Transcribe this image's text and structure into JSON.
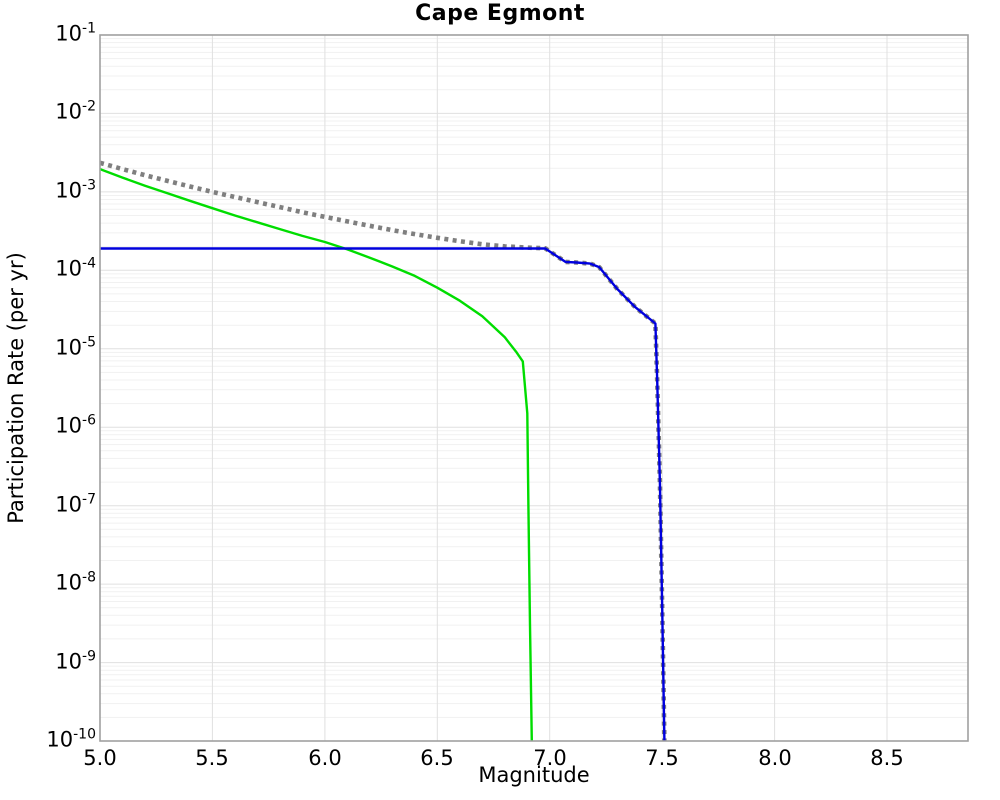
{
  "chart_data": {
    "type": "line",
    "title": "Cape Egmont",
    "xlabel": "Magnitude",
    "ylabel": "Participation Rate (per yr)",
    "x_range": [
      5.0,
      8.86
    ],
    "y_range": [
      1e-10,
      0.1
    ],
    "grid": true,
    "legend_position": "none",
    "x_ticks": [
      {
        "v": 5.0,
        "label": "5.0"
      },
      {
        "v": 5.5,
        "label": "5.5"
      },
      {
        "v": 6.0,
        "label": "6.0"
      },
      {
        "v": 6.5,
        "label": "6.5"
      },
      {
        "v": 7.0,
        "label": "7.0"
      },
      {
        "v": 7.5,
        "label": "7.5"
      },
      {
        "v": 8.0,
        "label": "8.0"
      },
      {
        "v": 8.5,
        "label": "8.5"
      }
    ],
    "y_ticks": [
      {
        "base": "10",
        "exp": "-1"
      },
      {
        "base": "10",
        "exp": "-2"
      },
      {
        "base": "10",
        "exp": "-3"
      },
      {
        "base": "10",
        "exp": "-4"
      },
      {
        "base": "10",
        "exp": "-5"
      },
      {
        "base": "10",
        "exp": "-6"
      },
      {
        "base": "10",
        "exp": "-7"
      },
      {
        "base": "10",
        "exp": "-8"
      },
      {
        "base": "10",
        "exp": "-9"
      },
      {
        "base": "10",
        "exp": "-10"
      }
    ],
    "colors": {
      "green_line": "#00dd00",
      "blue_line": "#0000dd",
      "gray_dotted": "#7f7f7f",
      "grid_major": "#e0e0e0",
      "grid_minor": "#f1f1f1",
      "axis_border": "#a0a0a0",
      "text": "#000000"
    },
    "series": [
      {
        "name": "green-solid-curve",
        "color": "#00dd00",
        "style": "solid",
        "width": 2.4,
        "points": [
          [
            5.0,
            0.00195
          ],
          [
            5.1,
            0.00152
          ],
          [
            5.2,
            0.0012
          ],
          [
            5.3,
            0.00096
          ],
          [
            5.4,
            0.00077
          ],
          [
            5.5,
            0.00062
          ],
          [
            5.6,
            0.0005
          ],
          [
            5.7,
            0.00041
          ],
          [
            5.8,
            0.000335
          ],
          [
            5.9,
            0.000275
          ],
          [
            6.0,
            0.00023
          ],
          [
            6.1,
            0.000185
          ],
          [
            6.2,
            0.000145
          ],
          [
            6.3,
            0.000112
          ],
          [
            6.4,
            8.5e-05
          ],
          [
            6.5,
            6e-05
          ],
          [
            6.6,
            4.1e-05
          ],
          [
            6.7,
            2.6e-05
          ],
          [
            6.8,
            1.4e-05
          ],
          [
            6.85,
            9.2e-06
          ],
          [
            6.88,
            6.9e-06
          ],
          [
            6.9,
            1.5e-06
          ],
          [
            6.905,
            1e-07
          ],
          [
            6.912,
            3e-09
          ],
          [
            6.92,
            1e-10
          ]
        ]
      },
      {
        "name": "gray-dotted-curve",
        "color": "#7f7f7f",
        "style": "dotted",
        "width": 4.6,
        "dash": "4 4.4",
        "points": [
          [
            5.0,
            0.00235
          ],
          [
            5.1,
            0.00195
          ],
          [
            5.2,
            0.00163
          ],
          [
            5.3,
            0.00138
          ],
          [
            5.4,
            0.00117
          ],
          [
            5.5,
            0.001
          ],
          [
            5.6,
            0.00086
          ],
          [
            5.7,
            0.00074
          ],
          [
            5.8,
            0.00064
          ],
          [
            5.9,
            0.00055
          ],
          [
            6.0,
            0.00048
          ],
          [
            6.1,
            0.00042
          ],
          [
            6.2,
            0.00037
          ],
          [
            6.3,
            0.000325
          ],
          [
            6.4,
            0.00029
          ],
          [
            6.5,
            0.00026
          ],
          [
            6.6,
            0.000235
          ],
          [
            6.7,
            0.000215
          ],
          [
            6.8,
            0.000202
          ],
          [
            6.9,
            0.000195
          ],
          [
            6.98,
            0.000191
          ],
          [
            7.07,
            0.000128
          ],
          [
            7.12,
            0.000126
          ],
          [
            7.18,
            0.000122
          ],
          [
            7.22,
            0.00011
          ],
          [
            7.3,
            5.8e-05
          ],
          [
            7.38,
            3.4e-05
          ],
          [
            7.47,
            2.1e-05
          ],
          [
            7.478,
            4e-06
          ],
          [
            7.49,
            2e-07
          ],
          [
            7.5,
            5e-09
          ],
          [
            7.51,
            1e-10
          ]
        ]
      },
      {
        "name": "blue-solid-curve",
        "color": "#0000dd",
        "style": "solid",
        "width": 2.4,
        "points": [
          [
            5.0,
            0.00019
          ],
          [
            5.5,
            0.00019
          ],
          [
            6.0,
            0.00019
          ],
          [
            6.5,
            0.00019
          ],
          [
            6.98,
            0.00019
          ],
          [
            7.07,
            0.000128
          ],
          [
            7.12,
            0.000126
          ],
          [
            7.18,
            0.000122
          ],
          [
            7.22,
            0.00011
          ],
          [
            7.3,
            5.8e-05
          ],
          [
            7.38,
            3.4e-05
          ],
          [
            7.47,
            2.1e-05
          ],
          [
            7.478,
            4e-06
          ],
          [
            7.49,
            2e-07
          ],
          [
            7.5,
            5e-09
          ],
          [
            7.51,
            1e-10
          ]
        ]
      }
    ],
    "annotations": []
  }
}
